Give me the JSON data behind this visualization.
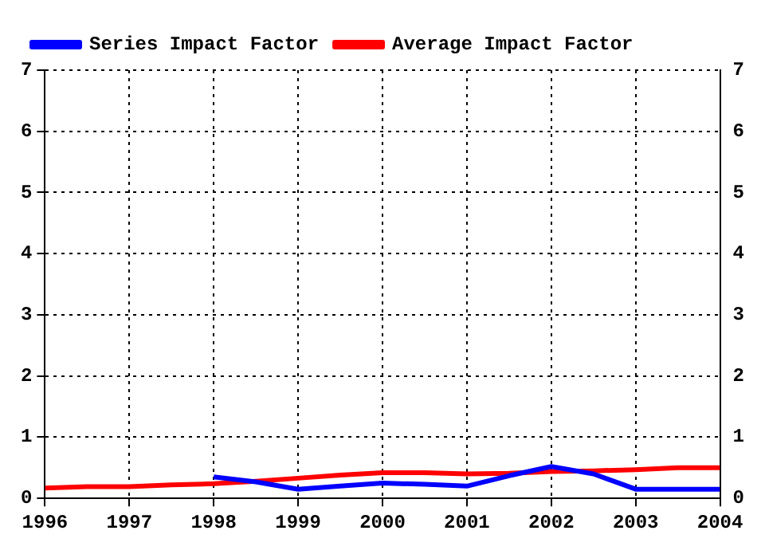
{
  "chart_data": {
    "type": "line",
    "series": [
      {
        "name": "Series Impact Factor",
        "color": "#0000ff",
        "x": [
          1998,
          1998.5,
          1999,
          1999.5,
          2000,
          2000.5,
          2001,
          2001.5,
          2002,
          2002.5,
          2003,
          2004
        ],
        "values": [
          0.35,
          0.27,
          0.15,
          0.2,
          0.25,
          0.23,
          0.2,
          0.37,
          0.52,
          0.4,
          0.15,
          0.15
        ]
      },
      {
        "name": "Average Impact Factor",
        "color": "#ff0000",
        "x": [
          1996,
          1996.5,
          1997,
          1997.5,
          1998,
          1998.5,
          1999,
          1999.5,
          2000,
          2000.5,
          2001,
          2001.5,
          2002,
          2002.5,
          2003,
          2003.5,
          2004
        ],
        "values": [
          0.17,
          0.19,
          0.19,
          0.22,
          0.24,
          0.28,
          0.33,
          0.38,
          0.42,
          0.42,
          0.4,
          0.41,
          0.44,
          0.45,
          0.47,
          0.5,
          0.5
        ]
      }
    ],
    "xlim": [
      1996,
      2004
    ],
    "xticks": [
      1996,
      1997,
      1998,
      1999,
      2000,
      2001,
      2002,
      2003,
      2004
    ],
    "ylim": [
      0,
      7
    ],
    "yticks": [
      0,
      1,
      2,
      3,
      4,
      5,
      6,
      7
    ],
    "y2lim": [
      0,
      7
    ],
    "y2ticks": [
      0,
      1,
      2,
      3,
      4,
      5,
      6,
      7
    ],
    "grid": true,
    "legend": "top left",
    "marker": "none",
    "line_style": "solid"
  }
}
